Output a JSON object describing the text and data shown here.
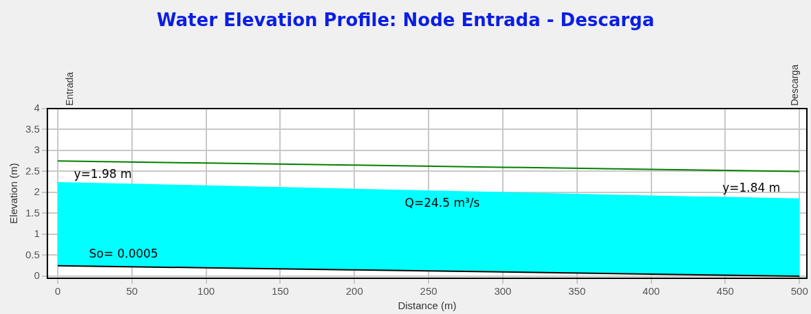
{
  "chart_data": {
    "type": "line",
    "title": "Water Elevation Profile: Node Entrada - Descarga",
    "xlabel": "Distance (m)",
    "ylabel": "Elevation (m)",
    "x": [
      0,
      100,
      200,
      300,
      400,
      500
    ],
    "series": [
      {
        "color": "#000000",
        "values": [
          0.25,
          0.2,
          0.15,
          0.1,
          0.05,
          0
        ]
      },
      {
        "type": "area",
        "color": "#00ffff",
        "values": [
          2.23,
          2.15,
          2.07,
          1.99,
          1.91,
          1.84
        ]
      },
      {
        "color": "#008000",
        "values": [
          2.75,
          2.7,
          2.65,
          2.6,
          2.55,
          2.5
        ]
      }
    ],
    "xlim": [
      -7,
      505
    ],
    "ylim": [
      -0.05,
      4
    ],
    "xticks": [
      0,
      50,
      100,
      150,
      200,
      250,
      300,
      350,
      400,
      450,
      500
    ],
    "yticks": [
      0,
      0.5,
      1,
      1.5,
      2,
      2.5,
      3,
      3.5,
      4
    ],
    "grid": true,
    "legend": false,
    "marker": "none",
    "line_style": "solid",
    "annotations": [
      "Entrada",
      "Descarga",
      "y=1.98 m",
      "y=1.84 m",
      "Q=24.5 m³/s",
      "So= 0.0005"
    ]
  }
}
